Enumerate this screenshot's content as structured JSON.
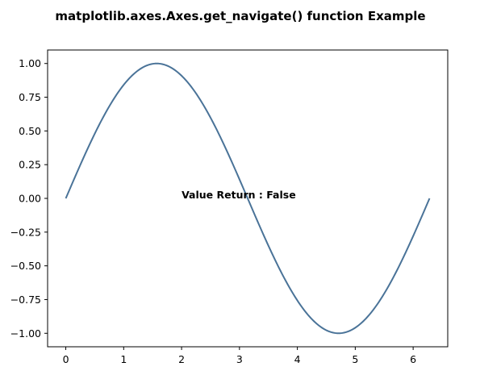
{
  "chart_data": {
    "type": "line",
    "title": "matplotlib.axes.Axes.get_navigate() function Example",
    "xlabel": "",
    "ylabel": "",
    "xlim": [
      -0.3142,
      6.5973
    ],
    "ylim": [
      -1.1,
      1.1
    ],
    "grid": false,
    "x_ticks": [
      0,
      1,
      2,
      3,
      4,
      5,
      6
    ],
    "x_tick_labels": [
      "0",
      "1",
      "2",
      "3",
      "4",
      "5",
      "6"
    ],
    "y_ticks": [
      1.0,
      0.75,
      0.5,
      0.25,
      0.0,
      -0.25,
      -0.5,
      -0.75,
      -1.0
    ],
    "y_tick_labels": [
      "1.00",
      "0.75",
      "0.50",
      "0.25",
      "0.00",
      "−0.25",
      "−0.50",
      "−0.75",
      "−1.00"
    ],
    "series": [
      {
        "function": "sin",
        "x_start": 0,
        "x_end": 6.2832,
        "points": [
          [
            0.0,
            0.0
          ],
          [
            0.2618,
            0.2588
          ],
          [
            0.5236,
            0.5
          ],
          [
            0.7854,
            0.7071
          ],
          [
            1.0472,
            0.866
          ],
          [
            1.309,
            0.9659
          ],
          [
            1.5708,
            1.0
          ],
          [
            1.8326,
            0.9659
          ],
          [
            2.0944,
            0.866
          ],
          [
            2.3562,
            0.7071
          ],
          [
            2.618,
            0.5
          ],
          [
            2.8798,
            0.2588
          ],
          [
            3.1416,
            0.0
          ],
          [
            3.4034,
            -0.2588
          ],
          [
            3.6652,
            -0.5
          ],
          [
            3.927,
            -0.7071
          ],
          [
            4.1888,
            -0.866
          ],
          [
            4.4506,
            -0.9659
          ],
          [
            4.7124,
            -1.0
          ],
          [
            4.9742,
            -0.9659
          ],
          [
            5.236,
            -0.866
          ],
          [
            5.4978,
            -0.7071
          ],
          [
            5.7596,
            -0.5
          ],
          [
            6.0214,
            -0.2588
          ],
          [
            6.2832,
            0.0
          ]
        ],
        "color": "#4a7398"
      }
    ],
    "annotation": {
      "text": "Value Return : False",
      "x": 2.0,
      "y": 0.0
    }
  }
}
